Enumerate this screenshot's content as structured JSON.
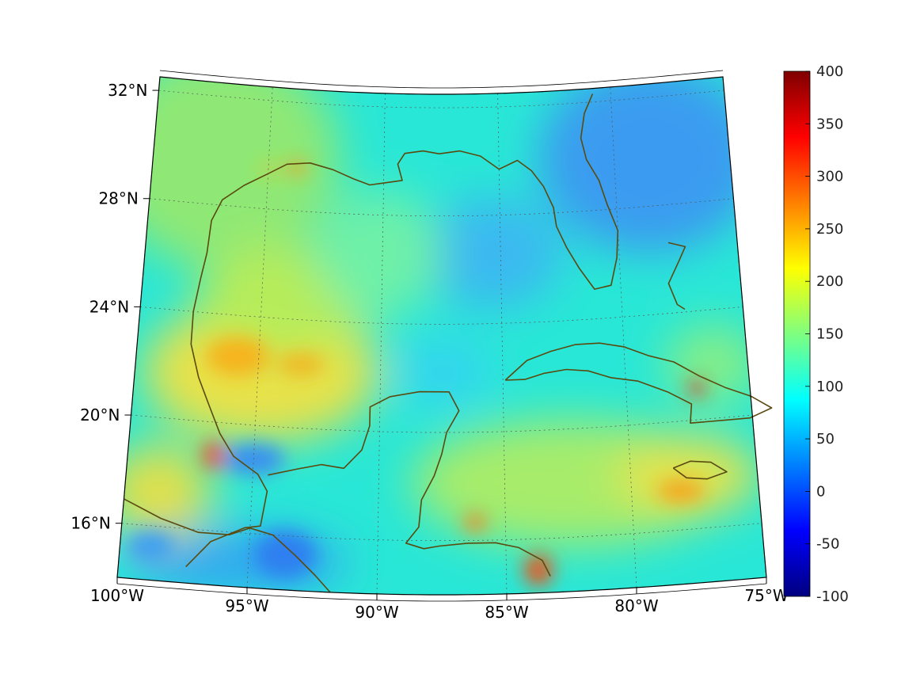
{
  "map": {
    "projection": "conic",
    "region": "Gulf of Mexico and Caribbean",
    "lon_range": [
      -100,
      -75
    ],
    "lat_range": [
      14,
      32.5
    ],
    "background_field_colormap": "jet",
    "coastline_color": "#5a4a10",
    "grid_style": "dotted"
  },
  "lon_ticks": [
    {
      "value": -100,
      "label": "100°W"
    },
    {
      "value": -95,
      "label": "95°W"
    },
    {
      "value": -90,
      "label": "90°W"
    },
    {
      "value": -85,
      "label": "85°W"
    },
    {
      "value": -80,
      "label": "80°W"
    },
    {
      "value": -75,
      "label": "75°W"
    }
  ],
  "lat_ticks": [
    {
      "value": 32,
      "label": "32°N"
    },
    {
      "value": 28,
      "label": "28°N"
    },
    {
      "value": 24,
      "label": "24°N"
    },
    {
      "value": 20,
      "label": "20°N"
    },
    {
      "value": 16,
      "label": "16°N"
    }
  ],
  "colorbar": {
    "min": -100,
    "max": 400,
    "ticks": [
      {
        "value": 400,
        "label": "400"
      },
      {
        "value": 350,
        "label": "350"
      },
      {
        "value": 300,
        "label": "300"
      },
      {
        "value": 250,
        "label": "250"
      },
      {
        "value": 200,
        "label": "200"
      },
      {
        "value": 150,
        "label": "150"
      },
      {
        "value": 100,
        "label": "100"
      },
      {
        "value": 50,
        "label": "50"
      },
      {
        "value": 0,
        "label": "0"
      },
      {
        "value": -50,
        "label": "-50"
      },
      {
        "value": -100,
        "label": "-100"
      }
    ]
  }
}
